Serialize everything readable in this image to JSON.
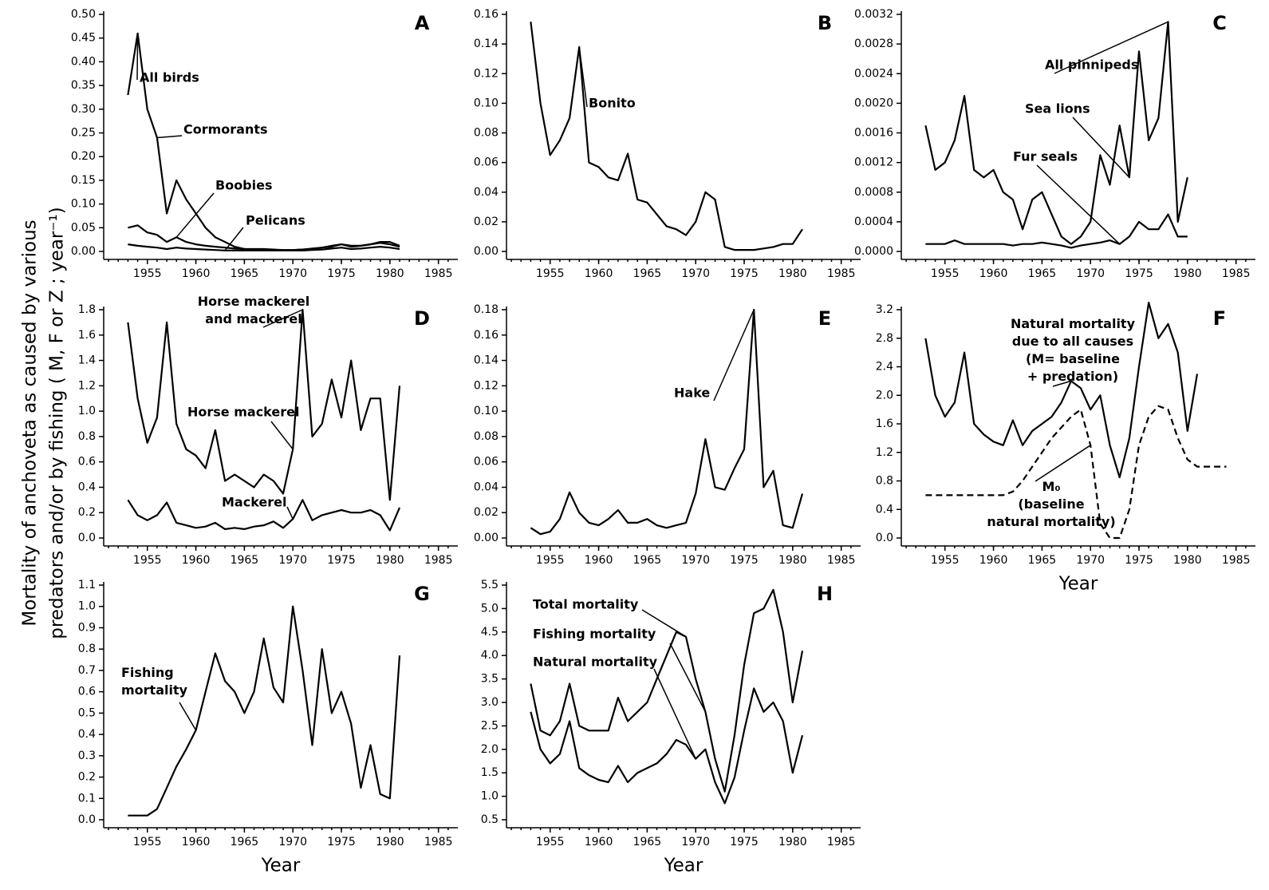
{
  "ylabel_lines": [
    "Mortality of anchoveta as caused by various",
    "predators and/or by fishing ( M, F or Z ; year⁻¹)"
  ],
  "chart_data": [
    {
      "type": "line",
      "title": "A",
      "x": [
        1953,
        1954,
        1955,
        1956,
        1957,
        1958,
        1959,
        1960,
        1961,
        1962,
        1963,
        1964,
        1965,
        1966,
        1967,
        1968,
        1969,
        1970,
        1971,
        1972,
        1973,
        1974,
        1975,
        1976,
        1977,
        1978,
        1979,
        1980,
        1981
      ],
      "xlim": [
        1950.5,
        1987
      ],
      "xticks": [
        1955,
        1960,
        1965,
        1970,
        1975,
        1980,
        1985
      ],
      "ylim": [
        0,
        0.5
      ],
      "yticks": [
        {
          "value": 0,
          "label": "0.00"
        },
        0.05,
        {
          "value": 0.1,
          "label": "0.10"
        },
        0.15,
        {
          "value": 0.2,
          "label": "0.20"
        },
        0.25,
        {
          "value": 0.3,
          "label": "0.30"
        },
        0.35,
        {
          "value": 0.4,
          "label": "0.40"
        },
        0.45,
        {
          "value": 0.5,
          "label": "0.50"
        }
      ],
      "series": [
        {
          "name": "All birds",
          "color": "#000000",
          "values": [
            0.33,
            0.46,
            0.3,
            0.24,
            0.08,
            0.15,
            0.11,
            0.08,
            0.05,
            0.03,
            0.02,
            0.01,
            0.005,
            0.005,
            0.005,
            0.004,
            0.003,
            0.003,
            0.004,
            0.006,
            0.008,
            0.01,
            0.015,
            0.012,
            0.012,
            0.015,
            0.018,
            0.015,
            0.01
          ]
        },
        {
          "name": "Boobies",
          "color": "#000000",
          "values": [
            0.05,
            0.055,
            0.04,
            0.035,
            0.02,
            0.03,
            0.02,
            0.015,
            0.012,
            0.01,
            0.008,
            0.006,
            0.005,
            0.004,
            0.004,
            0.003,
            0.003,
            0.003,
            0.004,
            0.005,
            0.008,
            0.012,
            0.015,
            0.01,
            0.012,
            0.015,
            0.02,
            0.02,
            0.012
          ]
        },
        {
          "name": "Pelicans",
          "color": "#000000",
          "values": [
            0.015,
            0.012,
            0.01,
            0.008,
            0.005,
            0.008,
            0.006,
            0.005,
            0.004,
            0.003,
            0.002,
            0.002,
            0.002,
            0.002,
            0.002,
            0.002,
            0.002,
            0.002,
            0.002,
            0.003,
            0.004,
            0.006,
            0.008,
            0.005,
            0.006,
            0.008,
            0.01,
            0.008,
            0.005
          ]
        }
      ],
      "annotations": [
        "Cormorants"
      ]
    },
    {
      "type": "line",
      "title": "B",
      "x": [
        1953,
        1954,
        1955,
        1956,
        1957,
        1958,
        1959,
        1960,
        1961,
        1962,
        1963,
        1964,
        1965,
        1966,
        1967,
        1968,
        1969,
        1970,
        1971,
        1972,
        1973,
        1974,
        1975,
        1976,
        1977,
        1978,
        1979,
        1980,
        1981
      ],
      "xlim": [
        1950.5,
        1987
      ],
      "xticks": [
        1955,
        1960,
        1965,
        1970,
        1975,
        1980,
        1985
      ],
      "ylim": [
        0,
        0.16
      ],
      "yticks": [
        {
          "value": 0,
          "label": "0.00"
        },
        0.02,
        0.04,
        0.06,
        0.08,
        {
          "value": 0.1,
          "label": "0.10"
        },
        0.12,
        0.14,
        0.16
      ],
      "series": [
        {
          "name": "Bonito",
          "color": "#000000",
          "values": [
            0.155,
            0.1,
            0.065,
            0.075,
            0.09,
            0.138,
            0.06,
            0.057,
            0.05,
            0.048,
            0.066,
            0.035,
            0.033,
            0.025,
            0.017,
            0.015,
            0.011,
            0.02,
            0.04,
            0.035,
            0.003,
            0.001,
            0.001,
            0.001,
            0.002,
            0.003,
            0.005,
            0.005,
            0.015
          ]
        }
      ]
    },
    {
      "type": "line",
      "title": "C",
      "x": [
        1953,
        1954,
        1955,
        1956,
        1957,
        1958,
        1959,
        1960,
        1961,
        1962,
        1963,
        1964,
        1965,
        1966,
        1967,
        1968,
        1969,
        1970,
        1971,
        1972,
        1973,
        1974,
        1975,
        1976,
        1977,
        1978,
        1979,
        1980
      ],
      "xlim": [
        1950.5,
        1987
      ],
      "xticks": [
        1955,
        1960,
        1965,
        1970,
        1975,
        1980,
        1985
      ],
      "ylim": [
        0,
        0.0032
      ],
      "yticks": [
        {
          "value": 0,
          "label": "0.0000"
        },
        0.0004,
        0.0008,
        0.0012,
        0.0016,
        {
          "value": 0.002,
          "label": "0.0020"
        },
        0.0024,
        0.0028,
        0.0032
      ],
      "series": [
        {
          "name": "All pinnipeds",
          "color": "#000000",
          "values": [
            0.0017,
            0.0011,
            0.0012,
            0.0015,
            0.0021,
            0.0011,
            0.001,
            0.0011,
            0.0008,
            0.0007,
            0.0003,
            0.0007,
            0.0008,
            0.0005,
            0.0002,
            0.0001,
            0.0002,
            0.0004,
            0.0013,
            0.0009,
            0.0017,
            0.001,
            0.0027,
            0.0015,
            0.0018,
            0.0031,
            0.0004,
            0.001
          ]
        },
        {
          "name": "Fur seals",
          "color": "#000000",
          "values": [
            0.0001,
            0.0001,
            0.0001,
            0.00015,
            0.0001,
            0.0001,
            0.0001,
            0.0001,
            0.0001,
            8e-05,
            0.0001,
            0.0001,
            0.00012,
            0.0001,
            8e-05,
            5e-05,
            8e-05,
            0.0001,
            0.00012,
            0.00015,
            0.0001,
            0.0002,
            0.0004,
            0.0003,
            0.0003,
            0.0005,
            0.0002,
            0.0002
          ]
        }
      ],
      "annotations": [
        "Sea lions"
      ]
    },
    {
      "type": "line",
      "title": "D",
      "x": [
        1953,
        1954,
        1955,
        1956,
        1957,
        1958,
        1959,
        1960,
        1961,
        1962,
        1963,
        1964,
        1965,
        1966,
        1967,
        1968,
        1969,
        1970,
        1971,
        1972,
        1973,
        1974,
        1975,
        1976,
        1977,
        1978,
        1979,
        1980,
        1981
      ],
      "xlim": [
        1950.5,
        1987
      ],
      "xticks": [
        1955,
        1960,
        1965,
        1970,
        1975,
        1980,
        1985
      ],
      "ylim": [
        0,
        1.8
      ],
      "yticks": [
        {
          "value": 0,
          "label": "0.0"
        },
        0.2,
        0.4,
        0.6,
        0.8,
        {
          "value": 1,
          "label": "1.0"
        },
        1.2,
        1.4,
        1.6,
        1.8
      ],
      "series": [
        {
          "name": "Horse mackerel\nand mackerel",
          "color": "#000000",
          "values": [
            1.7,
            1.1,
            0.75,
            0.95,
            1.7,
            0.9,
            0.7,
            0.65,
            0.55,
            0.85,
            0.45,
            0.5,
            0.45,
            0.4,
            0.5,
            0.45,
            0.35,
            0.7,
            1.8,
            0.8,
            0.9,
            1.25,
            0.95,
            1.4,
            0.85,
            1.1,
            1.1,
            0.3,
            1.2
          ]
        },
        {
          "name": "Mackerel",
          "color": "#000000",
          "values": [
            0.3,
            0.18,
            0.14,
            0.18,
            0.28,
            0.12,
            0.1,
            0.08,
            0.09,
            0.12,
            0.07,
            0.08,
            0.07,
            0.09,
            0.1,
            0.13,
            0.08,
            0.15,
            0.3,
            0.14,
            0.18,
            0.2,
            0.22,
            0.2,
            0.2,
            0.22,
            0.18,
            0.06,
            0.24
          ]
        }
      ],
      "annotations": [
        "Horse mackerel"
      ]
    },
    {
      "type": "line",
      "title": "E",
      "x": [
        1953,
        1954,
        1955,
        1956,
        1957,
        1958,
        1959,
        1960,
        1961,
        1962,
        1963,
        1964,
        1965,
        1966,
        1967,
        1968,
        1969,
        1970,
        1971,
        1972,
        1973,
        1974,
        1975,
        1976,
        1977,
        1978,
        1979,
        1980,
        1981
      ],
      "xlim": [
        1950.5,
        1987
      ],
      "xticks": [
        1955,
        1960,
        1965,
        1970,
        1975,
        1980,
        1985
      ],
      "ylim": [
        0,
        0.18
      ],
      "yticks": [
        {
          "value": 0,
          "label": "0.00"
        },
        0.02,
        0.04,
        0.06,
        0.08,
        {
          "value": 0.1,
          "label": "0.10"
        },
        0.12,
        0.14,
        0.16,
        0.18
      ],
      "series": [
        {
          "name": "Hake",
          "color": "#000000",
          "values": [
            0.008,
            0.003,
            0.005,
            0.015,
            0.036,
            0.02,
            0.012,
            0.01,
            0.015,
            0.022,
            0.012,
            0.012,
            0.015,
            0.01,
            0.008,
            0.01,
            0.012,
            0.035,
            0.078,
            0.04,
            0.038,
            0.055,
            0.07,
            0.18,
            0.04,
            0.053,
            0.01,
            0.008,
            0.035
          ]
        }
      ]
    },
    {
      "type": "line",
      "title": "F",
      "xlabel": "Year",
      "x": [
        1953,
        1954,
        1955,
        1956,
        1957,
        1958,
        1959,
        1960,
        1961,
        1962,
        1963,
        1964,
        1965,
        1966,
        1967,
        1968,
        1969,
        1970,
        1971,
        1972,
        1973,
        1974,
        1975,
        1976,
        1977,
        1978,
        1979,
        1980,
        1981,
        1982,
        1983,
        1984
      ],
      "xlim": [
        1950.5,
        1987
      ],
      "xticks": [
        1955,
        1960,
        1965,
        1970,
        1975,
        1980,
        1985
      ],
      "ylim": [
        0,
        3.2
      ],
      "yticks": [
        {
          "value": 0,
          "label": "0.0"
        },
        0.4,
        0.8,
        1.2,
        1.6,
        {
          "value": 2,
          "label": "2.0"
        },
        2.4,
        2.8,
        3.2
      ],
      "series": [
        {
          "name": "Natural mortality\ndue to all causes\n(M= baseline\n+ predation)",
          "color": "#000000",
          "values": [
            2.8,
            2.0,
            1.7,
            1.9,
            2.6,
            1.6,
            1.45,
            1.35,
            1.3,
            1.65,
            1.3,
            1.5,
            1.6,
            1.7,
            1.9,
            2.2,
            2.1,
            1.8,
            2.0,
            1.3,
            0.85,
            1.4,
            2.4,
            3.3,
            2.8,
            3.0,
            2.6,
            1.5,
            2.3,
            null,
            null,
            null
          ]
        },
        {
          "name": "M₀\n(baseline\nnatural mortality)",
          "color": "#000000",
          "style": "dashed",
          "values": [
            0.6,
            0.6,
            0.6,
            0.6,
            0.6,
            0.6,
            0.6,
            0.6,
            0.6,
            0.65,
            0.8,
            1.0,
            1.2,
            1.4,
            1.55,
            1.7,
            1.8,
            1.3,
            0.2,
            0,
            0,
            0.4,
            1.3,
            1.7,
            1.85,
            1.8,
            1.4,
            1.1,
            1.0,
            1.0,
            1.0,
            1.0
          ]
        }
      ]
    },
    {
      "type": "line",
      "title": "G",
      "xlabel": "Year",
      "x": [
        1953,
        1954,
        1955,
        1956,
        1957,
        1958,
        1959,
        1960,
        1961,
        1962,
        1963,
        1964,
        1965,
        1966,
        1967,
        1968,
        1969,
        1970,
        1971,
        1972,
        1973,
        1974,
        1975,
        1976,
        1977,
        1978,
        1979,
        1980,
        1981
      ],
      "xlim": [
        1950.5,
        1987
      ],
      "xticks": [
        1955,
        1960,
        1965,
        1970,
        1975,
        1980,
        1985
      ],
      "ylim": [
        0,
        1.1
      ],
      "yticks": [
        {
          "value": 0,
          "label": "0.0"
        },
        0.1,
        0.2,
        0.3,
        0.4,
        0.5,
        0.6,
        0.7,
        0.8,
        0.9,
        {
          "value": 1,
          "label": "1.0"
        },
        1.1
      ],
      "series": [
        {
          "name": "Fishing\nmortality",
          "color": "#000000",
          "values": [
            0.02,
            0.02,
            0.02,
            0.05,
            0.15,
            0.25,
            0.33,
            0.42,
            0.6,
            0.78,
            0.65,
            0.6,
            0.5,
            0.6,
            0.85,
            0.62,
            0.55,
            1.0,
            0.7,
            0.35,
            0.8,
            0.5,
            0.6,
            0.45,
            0.15,
            0.35,
            0.12,
            0.1,
            0.77
          ]
        }
      ]
    },
    {
      "type": "line",
      "title": "H",
      "xlabel": "Year",
      "x": [
        1953,
        1954,
        1955,
        1956,
        1957,
        1958,
        1959,
        1960,
        1961,
        1962,
        1963,
        1964,
        1965,
        1966,
        1967,
        1968,
        1969,
        1970,
        1971,
        1972,
        1973,
        1974,
        1975,
        1976,
        1977,
        1978,
        1979,
        1980,
        1981
      ],
      "xlim": [
        1950.5,
        1987
      ],
      "xticks": [
        1955,
        1960,
        1965,
        1970,
        1975,
        1980,
        1985
      ],
      "ylim": [
        0.5,
        5.5
      ],
      "yticks": [
        0.5,
        {
          "value": 1,
          "label": "1.0"
        },
        1.5,
        {
          "value": 2,
          "label": "2.0"
        },
        2.5,
        {
          "value": 3,
          "label": "3.0"
        },
        3.5,
        {
          "value": 4,
          "label": "4.0"
        },
        4.5,
        {
          "value": 5,
          "label": "5.0"
        },
        5.5
      ],
      "series": [
        {
          "name": "Total mortality",
          "color": "#000000",
          "values": [
            3.4,
            2.4,
            2.3,
            2.6,
            3.4,
            2.5,
            2.4,
            2.4,
            2.4,
            3.1,
            2.6,
            2.8,
            3.0,
            3.5,
            4.0,
            4.5,
            4.4,
            3.5,
            2.8,
            1.8,
            1.1,
            2.3,
            3.8,
            4.9,
            5.0,
            5.4,
            4.5,
            3.0,
            4.1
          ]
        },
        {
          "name": "Natural mortality",
          "color": "#000000",
          "values": [
            2.8,
            2.0,
            1.7,
            1.9,
            2.6,
            1.6,
            1.45,
            1.35,
            1.3,
            1.65,
            1.3,
            1.5,
            1.6,
            1.7,
            1.9,
            2.2,
            2.1,
            1.8,
            2.0,
            1.3,
            0.85,
            1.4,
            2.4,
            3.3,
            2.8,
            3.0,
            2.6,
            1.5,
            2.3
          ]
        }
      ],
      "annotations": [
        "Fishing mortality"
      ]
    }
  ]
}
